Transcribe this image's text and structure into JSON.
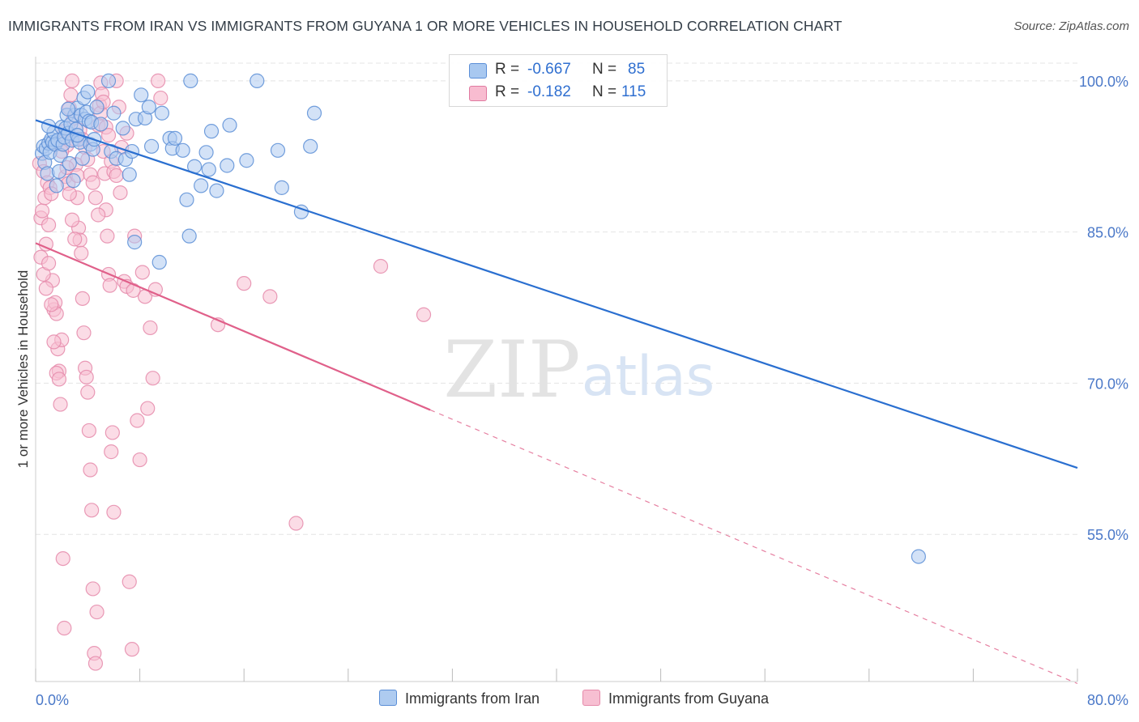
{
  "title": "IMMIGRANTS FROM IRAN VS IMMIGRANTS FROM GUYANA 1 OR MORE VEHICLES IN HOUSEHOLD CORRELATION CHART",
  "source": "Source: ZipAtlas.com",
  "watermark": {
    "zip": "ZIP",
    "atlas": "atlas"
  },
  "legend": {
    "rows": [
      {
        "r_label": "R =",
        "r_value": "-0.667",
        "n_label": "N =",
        "n_value": "85",
        "color": "#a8c8f0",
        "border": "#5b8fd8"
      },
      {
        "r_label": "R =",
        "r_value": "-0.182",
        "n_label": "N =",
        "n_value": "115",
        "color": "#f8bcd0",
        "border": "#e07aa0"
      }
    ]
  },
  "colors": {
    "iran_fill": "#aecbf0",
    "iran_stroke": "#5a8ed6",
    "iran_line": "#2a6fd0",
    "guyana_fill": "#f7bfd2",
    "guyana_stroke": "#e58aaa",
    "guyana_line": "#e0608a",
    "tick_text": "#4a78c8",
    "grid": "#e4e4e4"
  },
  "chart_data": {
    "type": "scatter",
    "title": "IMMIGRANTS FROM IRAN VS IMMIGRANTS FROM GUYANA 1 OR MORE VEHICLES IN HOUSEHOLD CORRELATION CHART",
    "xlabel": "",
    "ylabel": "1 or more Vehicles in Household",
    "xlim": [
      0,
      80
    ],
    "ylim": [
      40.4,
      102.4
    ],
    "x_tick_labels": [
      "0.0%",
      "80.0%"
    ],
    "y_ticks": [
      55,
      70,
      85,
      100
    ],
    "y_tick_labels": [
      "55.0%",
      "70.0%",
      "85.0%",
      "100.0%"
    ],
    "series": [
      {
        "name": "Immigrants from Iran",
        "R": -0.667,
        "N": 85,
        "trend": {
          "x": [
            0,
            80
          ],
          "y": [
            96.1,
            61.6
          ],
          "dashed_from": null
        },
        "points": [
          [
            0.5,
            92.8
          ],
          [
            0.6,
            93.5
          ],
          [
            0.7,
            91.9
          ],
          [
            0.8,
            93.3
          ],
          [
            0.9,
            90.8
          ],
          [
            1.0,
            93.8
          ],
          [
            1.1,
            92.9
          ],
          [
            1.2,
            94.2
          ],
          [
            1.3,
            93.9
          ],
          [
            1.4,
            94.9
          ],
          [
            1.5,
            93.7
          ],
          [
            1.6,
            89.6
          ],
          [
            1.7,
            94.1
          ],
          [
            1.8,
            91.0
          ],
          [
            1.9,
            92.6
          ],
          [
            2.0,
            95.4
          ],
          [
            2.1,
            93.7
          ],
          [
            2.2,
            94.4
          ],
          [
            2.3,
            95.3
          ],
          [
            2.4,
            96.6
          ],
          [
            2.5,
            94.8
          ],
          [
            2.6,
            91.8
          ],
          [
            2.7,
            95.7
          ],
          [
            2.8,
            94.1
          ],
          [
            2.9,
            90.1
          ],
          [
            3.0,
            96.6
          ],
          [
            3.1,
            95.2
          ],
          [
            3.2,
            97.3
          ],
          [
            3.3,
            94.2
          ],
          [
            3.4,
            93.9
          ],
          [
            3.5,
            96.6
          ],
          [
            3.6,
            92.3
          ],
          [
            3.7,
            98.3
          ],
          [
            3.8,
            96.2
          ],
          [
            3.9,
            96.9
          ],
          [
            4.0,
            98.9
          ],
          [
            4.1,
            96.0
          ],
          [
            4.2,
            93.7
          ],
          [
            4.3,
            95.9
          ],
          [
            4.4,
            93.2
          ],
          [
            4.5,
            94.2
          ],
          [
            4.7,
            97.4
          ],
          [
            5.6,
            100.0
          ],
          [
            5.8,
            93.0
          ],
          [
            6.2,
            92.3
          ],
          [
            6.7,
            95.3
          ],
          [
            6.9,
            92.2
          ],
          [
            7.2,
            90.7
          ],
          [
            7.4,
            93.0
          ],
          [
            7.6,
            84.0
          ],
          [
            7.7,
            96.2
          ],
          [
            8.1,
            98.6
          ],
          [
            8.4,
            96.3
          ],
          [
            8.7,
            97.4
          ],
          [
            9.5,
            82.0
          ],
          [
            9.7,
            96.8
          ],
          [
            10.3,
            94.3
          ],
          [
            10.5,
            93.3
          ],
          [
            10.7,
            94.3
          ],
          [
            11.3,
            93.1
          ],
          [
            11.6,
            88.2
          ],
          [
            11.8,
            84.6
          ],
          [
            11.9,
            100.0
          ],
          [
            12.2,
            91.5
          ],
          [
            12.7,
            89.6
          ],
          [
            13.3,
            91.2
          ],
          [
            13.5,
            95.0
          ],
          [
            13.9,
            89.1
          ],
          [
            14.7,
            91.6
          ],
          [
            14.9,
            95.6
          ],
          [
            16.2,
            92.1
          ],
          [
            17.0,
            100.0
          ],
          [
            18.6,
            93.1
          ],
          [
            18.9,
            89.4
          ],
          [
            20.4,
            87.0
          ],
          [
            21.1,
            93.5
          ],
          [
            21.4,
            96.8
          ],
          [
            67.8,
            52.8
          ],
          [
            1.0,
            95.5
          ],
          [
            2.5,
            97.2
          ],
          [
            3.2,
            94.6
          ],
          [
            5.0,
            95.7
          ],
          [
            6.0,
            96.8
          ],
          [
            8.9,
            93.5
          ],
          [
            13.1,
            92.9
          ]
        ]
      },
      {
        "name": "Immigrants from Guyana",
        "R": -0.182,
        "N": 115,
        "trend": {
          "x": [
            0,
            80
          ],
          "y": [
            83.9,
            40.2
          ],
          "dashed_from": 30.3
        },
        "points": [
          [
            0.3,
            91.8
          ],
          [
            0.4,
            86.4
          ],
          [
            0.5,
            87.1
          ],
          [
            0.6,
            91.0
          ],
          [
            0.7,
            88.4
          ],
          [
            0.8,
            83.8
          ],
          [
            0.9,
            89.9
          ],
          [
            1.0,
            85.7
          ],
          [
            1.1,
            89.4
          ],
          [
            1.2,
            88.8
          ],
          [
            1.3,
            80.2
          ],
          [
            1.4,
            77.3
          ],
          [
            1.5,
            78.0
          ],
          [
            1.6,
            76.9
          ],
          [
            1.7,
            73.4
          ],
          [
            1.8,
            71.2
          ],
          [
            1.9,
            67.9
          ],
          [
            2.0,
            74.3
          ],
          [
            2.1,
            52.6
          ],
          [
            2.2,
            45.7
          ],
          [
            2.3,
            90.5
          ],
          [
            2.4,
            93.6
          ],
          [
            2.5,
            89.8
          ],
          [
            2.6,
            97.3
          ],
          [
            2.7,
            98.6
          ],
          [
            2.8,
            100.0
          ],
          [
            2.9,
            96.3
          ],
          [
            3.0,
            94.2
          ],
          [
            3.1,
            91.7
          ],
          [
            3.2,
            88.4
          ],
          [
            3.3,
            85.4
          ],
          [
            3.4,
            84.2
          ],
          [
            3.5,
            82.9
          ],
          [
            3.6,
            78.4
          ],
          [
            3.7,
            75.0
          ],
          [
            3.8,
            71.5
          ],
          [
            3.9,
            70.6
          ],
          [
            4.0,
            69.1
          ],
          [
            4.1,
            65.3
          ],
          [
            4.2,
            61.4
          ],
          [
            4.3,
            57.4
          ],
          [
            4.4,
            49.6
          ],
          [
            4.5,
            43.2
          ],
          [
            4.6,
            42.2
          ],
          [
            4.7,
            47.3
          ],
          [
            4.8,
            95.6
          ],
          [
            4.9,
            97.6
          ],
          [
            5.0,
            99.8
          ],
          [
            5.1,
            98.7
          ],
          [
            5.2,
            93.0
          ],
          [
            5.3,
            90.8
          ],
          [
            5.4,
            87.2
          ],
          [
            5.5,
            84.6
          ],
          [
            5.6,
            80.8
          ],
          [
            5.7,
            79.7
          ],
          [
            5.8,
            63.2
          ],
          [
            5.9,
            65.1
          ],
          [
            6.0,
            57.2
          ],
          [
            6.2,
            100.0
          ],
          [
            6.4,
            97.4
          ],
          [
            6.6,
            93.4
          ],
          [
            6.8,
            80.1
          ],
          [
            7.0,
            79.6
          ],
          [
            7.2,
            50.3
          ],
          [
            7.4,
            43.6
          ],
          [
            7.6,
            84.6
          ],
          [
            7.8,
            66.3
          ],
          [
            8.0,
            62.4
          ],
          [
            8.2,
            81.0
          ],
          [
            8.4,
            78.6
          ],
          [
            8.6,
            67.5
          ],
          [
            8.8,
            75.5
          ],
          [
            9.0,
            70.5
          ],
          [
            9.2,
            79.3
          ],
          [
            9.4,
            100.0
          ],
          [
            9.6,
            98.3
          ],
          [
            14.0,
            75.8
          ],
          [
            16.0,
            79.9
          ],
          [
            18.0,
            78.6
          ],
          [
            20.0,
            56.1
          ],
          [
            26.5,
            81.6
          ],
          [
            29.8,
            76.8
          ],
          [
            0.4,
            82.5
          ],
          [
            0.6,
            80.8
          ],
          [
            0.8,
            79.4
          ],
          [
            1.0,
            81.9
          ],
          [
            1.2,
            77.8
          ],
          [
            1.4,
            74.1
          ],
          [
            1.6,
            71.0
          ],
          [
            1.8,
            70.4
          ],
          [
            2.0,
            93.0
          ],
          [
            2.2,
            95.0
          ],
          [
            2.4,
            91.4
          ],
          [
            2.6,
            88.8
          ],
          [
            2.8,
            86.2
          ],
          [
            3.0,
            84.3
          ],
          [
            3.2,
            90.6
          ],
          [
            3.4,
            95.1
          ],
          [
            3.6,
            94.2
          ],
          [
            3.8,
            93.4
          ],
          [
            4.0,
            92.2
          ],
          [
            4.2,
            90.7
          ],
          [
            4.4,
            89.9
          ],
          [
            4.6,
            88.4
          ],
          [
            4.8,
            86.7
          ],
          [
            5.0,
            96.8
          ],
          [
            5.2,
            97.9
          ],
          [
            5.4,
            95.4
          ],
          [
            5.6,
            94.6
          ],
          [
            5.8,
            92.0
          ],
          [
            6.0,
            91.0
          ],
          [
            6.2,
            90.6
          ],
          [
            6.5,
            88.9
          ],
          [
            7.0,
            94.8
          ],
          [
            7.5,
            79.2
          ]
        ]
      }
    ]
  },
  "bottom_legend": [
    {
      "label": "Immigrants from Iran",
      "color": "#aecbf0",
      "border": "#5a8ed6"
    },
    {
      "label": "Immigrants from Guyana",
      "color": "#f7bfd2",
      "border": "#e58aaa"
    }
  ]
}
